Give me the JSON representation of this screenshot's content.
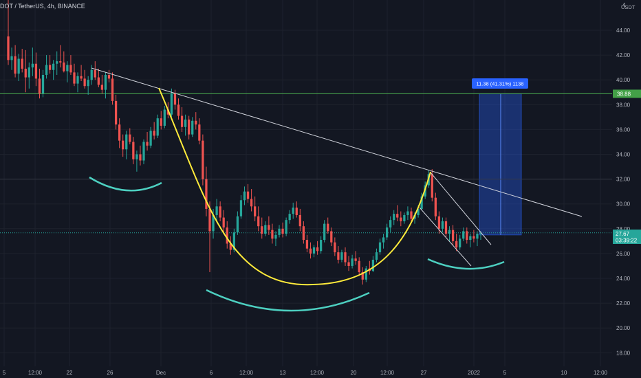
{
  "header": {
    "symbol_line": "DOT / TetherUS, 4h, BINANCE"
  },
  "axis": {
    "currency": "USDT",
    "top_label": "4"
  },
  "badges": {
    "resistance_level": "38.88",
    "current_price": "27.67",
    "countdown": "03:39:22"
  },
  "measure": {
    "label": "11.38 (41.31%) 1138"
  },
  "colors": {
    "background": "#131722",
    "up_candle": "#26a69a",
    "down_candle": "#ef5350",
    "cup_curve": "#ffeb3b",
    "support_arcs": "#4dd0c1",
    "trendline": "#d1d4dc",
    "resistance_line": "#4caf50",
    "measure_box": "#1e3a8a",
    "measure_label_bg": "#2962ff",
    "price_badge": "#26a69a",
    "resistance_badge": "#43a047"
  },
  "chart_data": {
    "type": "candlestick",
    "title": "DOT / TetherUS, 4h, BINANCE",
    "ylabel": "USDT",
    "ylim": [
      17,
      47
    ],
    "y_ticks": [
      "44.00",
      "42.00",
      "40.00",
      "38.00",
      "36.00",
      "34.00",
      "32.00",
      "30.00",
      "28.00",
      "26.00",
      "24.00",
      "22.00",
      "20.00",
      "18.00"
    ],
    "x_ticks": [
      "5",
      "12:00",
      "22",
      "26",
      "Dec",
      "6",
      "12:00",
      "13",
      "12:00",
      "20",
      "12:00",
      "27",
      "2022",
      "5",
      "10",
      "12:00"
    ],
    "annotations": {
      "descending_trendline": {
        "from": [
          "Nov 23",
          41.0
        ],
        "to": [
          "Jan 12",
          29.0
        ]
      },
      "horizontal_resistance": 38.88,
      "horizontal_level_dotted": 32.0,
      "current_price": 27.67,
      "measure_move": {
        "value": 11.38,
        "percent": 41.31,
        "ticks": 1138,
        "from": 27.5,
        "to": 38.88
      },
      "cup_pattern": {
        "start": [
          "Dec 1",
          39.2
        ],
        "bottom": [
          "Dec 16",
          23.5
        ],
        "end": [
          "Dec 27",
          32.6
        ]
      }
    },
    "candles": [
      [
        43.5,
        46.5,
        41.2,
        41.6
      ],
      [
        41.6,
        42.6,
        40.8,
        41.9
      ],
      [
        41.9,
        42.8,
        40.2,
        40.5
      ],
      [
        40.5,
        42.1,
        39.9,
        41.7
      ],
      [
        41.7,
        42.5,
        40.6,
        40.9
      ],
      [
        40.9,
        42.4,
        39.0,
        40.2
      ],
      [
        40.2,
        41.4,
        39.3,
        41.0
      ],
      [
        41.0,
        42.6,
        40.3,
        41.3
      ],
      [
        41.3,
        42.2,
        39.5,
        40.1
      ],
      [
        40.1,
        40.9,
        38.5,
        38.9
      ],
      [
        38.9,
        40.8,
        38.6,
        40.4
      ],
      [
        40.4,
        42.0,
        40.1,
        41.2
      ],
      [
        41.2,
        42.0,
        40.5,
        40.8
      ],
      [
        40.8,
        41.6,
        40.0,
        41.3
      ],
      [
        41.3,
        42.3,
        40.4,
        41.5
      ],
      [
        41.5,
        42.8,
        41.0,
        41.4
      ],
      [
        41.4,
        42.3,
        40.6,
        40.7
      ],
      [
        40.7,
        41.5,
        39.8,
        41.2
      ],
      [
        41.2,
        42.0,
        40.4,
        40.6
      ],
      [
        40.6,
        41.3,
        39.5,
        39.7
      ],
      [
        39.7,
        40.6,
        39.0,
        40.3
      ],
      [
        40.3,
        41.2,
        39.9,
        40.1
      ],
      [
        40.1,
        40.8,
        39.3,
        39.5
      ],
      [
        39.5,
        40.3,
        38.8,
        40.0
      ],
      [
        40.0,
        41.2,
        39.6,
        40.8
      ],
      [
        40.8,
        41.5,
        40.0,
        40.2
      ],
      [
        40.2,
        40.9,
        39.4,
        39.6
      ],
      [
        39.6,
        40.4,
        38.9,
        39.2
      ],
      [
        39.2,
        40.6,
        38.5,
        40.4
      ],
      [
        40.4,
        40.8,
        39.8,
        40.1
      ],
      [
        40.1,
        40.6,
        38.0,
        38.3
      ],
      [
        38.3,
        38.8,
        36.0,
        36.4
      ],
      [
        36.4,
        36.9,
        34.5,
        35.1
      ],
      [
        35.1,
        35.6,
        33.8,
        34.4
      ],
      [
        34.4,
        35.9,
        33.6,
        35.6
      ],
      [
        35.6,
        36.1,
        34.8,
        35.0
      ],
      [
        35.0,
        35.4,
        33.2,
        33.6
      ],
      [
        33.6,
        34.3,
        32.6,
        34.0
      ],
      [
        34.0,
        34.7,
        33.1,
        33.5
      ],
      [
        33.5,
        35.2,
        33.2,
        35.0
      ],
      [
        35.0,
        35.8,
        34.3,
        34.7
      ],
      [
        34.7,
        36.2,
        34.5,
        35.9
      ],
      [
        35.9,
        36.6,
        35.2,
        35.5
      ],
      [
        35.5,
        37.2,
        35.3,
        36.9
      ],
      [
        36.9,
        37.5,
        36.0,
        36.3
      ],
      [
        36.3,
        37.9,
        36.1,
        37.6
      ],
      [
        37.6,
        38.2,
        36.9,
        37.2
      ],
      [
        37.2,
        39.3,
        37.0,
        38.9
      ],
      [
        38.9,
        39.2,
        37.6,
        38.0
      ],
      [
        38.0,
        38.5,
        36.8,
        37.1
      ],
      [
        37.1,
        37.8,
        35.8,
        36.2
      ],
      [
        36.2,
        37.2,
        35.5,
        36.8
      ],
      [
        36.8,
        37.1,
        35.2,
        35.6
      ],
      [
        35.6,
        37.0,
        35.4,
        36.7
      ],
      [
        36.7,
        37.4,
        36.0,
        36.4
      ],
      [
        36.4,
        36.9,
        34.8,
        35.1
      ],
      [
        35.1,
        35.6,
        31.5,
        32.0
      ],
      [
        32.0,
        33.0,
        29.0,
        29.6
      ],
      [
        29.6,
        30.2,
        24.5,
        27.8
      ],
      [
        27.8,
        29.6,
        27.2,
        29.1
      ],
      [
        29.1,
        30.4,
        28.5,
        29.8
      ],
      [
        29.8,
        30.2,
        28.6,
        28.9
      ],
      [
        28.9,
        29.5,
        27.6,
        28.1
      ],
      [
        28.1,
        28.6,
        26.4,
        26.8
      ],
      [
        26.8,
        27.4,
        25.9,
        26.3
      ],
      [
        26.3,
        28.0,
        26.1,
        27.7
      ],
      [
        27.7,
        29.4,
        27.5,
        29.0
      ],
      [
        29.0,
        30.7,
        28.8,
        30.3
      ],
      [
        30.3,
        31.4,
        29.9,
        31.0
      ],
      [
        31.0,
        31.6,
        30.1,
        30.4
      ],
      [
        30.4,
        31.2,
        29.4,
        29.8
      ],
      [
        29.8,
        30.6,
        28.6,
        29.0
      ],
      [
        29.0,
        29.8,
        27.8,
        28.2
      ],
      [
        28.2,
        28.9,
        27.2,
        27.6
      ],
      [
        27.6,
        28.6,
        27.4,
        28.3
      ],
      [
        28.3,
        29.0,
        27.5,
        27.9
      ],
      [
        27.9,
        28.4,
        26.8,
        27.2
      ],
      [
        27.2,
        27.8,
        26.6,
        27.5
      ],
      [
        27.5,
        28.3,
        27.3,
        28.0
      ],
      [
        28.0,
        28.5,
        27.3,
        27.6
      ],
      [
        27.6,
        28.9,
        27.4,
        28.7
      ],
      [
        28.7,
        29.5,
        28.4,
        29.2
      ],
      [
        29.2,
        30.1,
        28.8,
        29.7
      ],
      [
        29.7,
        30.2,
        28.9,
        29.1
      ],
      [
        29.1,
        29.6,
        27.8,
        28.2
      ],
      [
        28.2,
        28.6,
        26.8,
        27.1
      ],
      [
        27.1,
        27.5,
        26.1,
        26.4
      ],
      [
        26.4,
        26.9,
        25.6,
        26.0
      ],
      [
        26.0,
        26.7,
        25.7,
        26.5
      ],
      [
        26.5,
        27.0,
        25.9,
        26.2
      ],
      [
        26.2,
        27.4,
        26.0,
        27.1
      ],
      [
        27.1,
        28.7,
        26.9,
        28.4
      ],
      [
        28.4,
        28.9,
        27.6,
        27.8
      ],
      [
        27.8,
        28.1,
        26.6,
        26.9
      ],
      [
        26.9,
        27.3,
        25.8,
        26.1
      ],
      [
        26.1,
        26.6,
        25.2,
        25.5
      ],
      [
        25.5,
        26.3,
        25.3,
        26.1
      ],
      [
        26.1,
        26.5,
        25.0,
        25.3
      ],
      [
        25.3,
        25.8,
        24.6,
        25.0
      ],
      [
        25.0,
        25.9,
        24.8,
        25.6
      ],
      [
        25.6,
        26.2,
        25.1,
        25.4
      ],
      [
        25.4,
        25.7,
        24.2,
        24.5
      ],
      [
        24.5,
        24.9,
        23.5,
        23.9
      ],
      [
        23.9,
        25.0,
        23.7,
        24.8
      ],
      [
        24.8,
        25.4,
        24.3,
        24.6
      ],
      [
        24.6,
        25.8,
        24.5,
        25.5
      ],
      [
        25.5,
        26.4,
        25.3,
        26.1
      ],
      [
        26.1,
        27.2,
        25.9,
        26.9
      ],
      [
        26.9,
        27.6,
        26.4,
        27.3
      ],
      [
        27.3,
        28.4,
        27.1,
        28.1
      ],
      [
        28.1,
        29.0,
        27.7,
        28.7
      ],
      [
        28.7,
        29.5,
        28.3,
        29.2
      ],
      [
        29.2,
        29.9,
        28.6,
        28.9
      ],
      [
        28.9,
        29.4,
        28.2,
        28.6
      ],
      [
        28.6,
        29.3,
        28.4,
        29.1
      ],
      [
        29.1,
        29.8,
        28.7,
        29.4
      ],
      [
        29.4,
        29.7,
        28.5,
        28.8
      ],
      [
        28.8,
        29.3,
        28.4,
        29.1
      ],
      [
        29.1,
        29.9,
        28.9,
        29.6
      ],
      [
        29.6,
        30.9,
        29.5,
        30.6
      ],
      [
        30.6,
        31.8,
        30.4,
        31.5
      ],
      [
        31.5,
        32.7,
        31.3,
        32.4
      ],
      [
        32.4,
        32.8,
        30.2,
        30.5
      ],
      [
        30.5,
        30.9,
        28.7,
        29.0
      ],
      [
        29.0,
        29.4,
        27.6,
        28.0
      ],
      [
        28.0,
        28.9,
        27.7,
        28.6
      ],
      [
        28.6,
        28.9,
        27.3,
        27.6
      ],
      [
        27.6,
        28.2,
        27.0,
        27.9
      ],
      [
        27.9,
        28.3,
        26.7,
        27.0
      ],
      [
        27.0,
        27.6,
        26.2,
        26.5
      ],
      [
        26.5,
        27.5,
        26.3,
        27.2
      ],
      [
        27.2,
        28.1,
        27.0,
        27.8
      ],
      [
        27.8,
        28.1,
        26.8,
        27.1
      ],
      [
        27.1,
        27.6,
        26.5,
        27.4
      ],
      [
        27.4,
        27.9,
        26.9,
        27.2
      ],
      [
        27.2,
        27.8,
        26.6,
        27.6
      ],
      [
        27.6,
        27.8,
        27.1,
        27.67
      ]
    ]
  }
}
